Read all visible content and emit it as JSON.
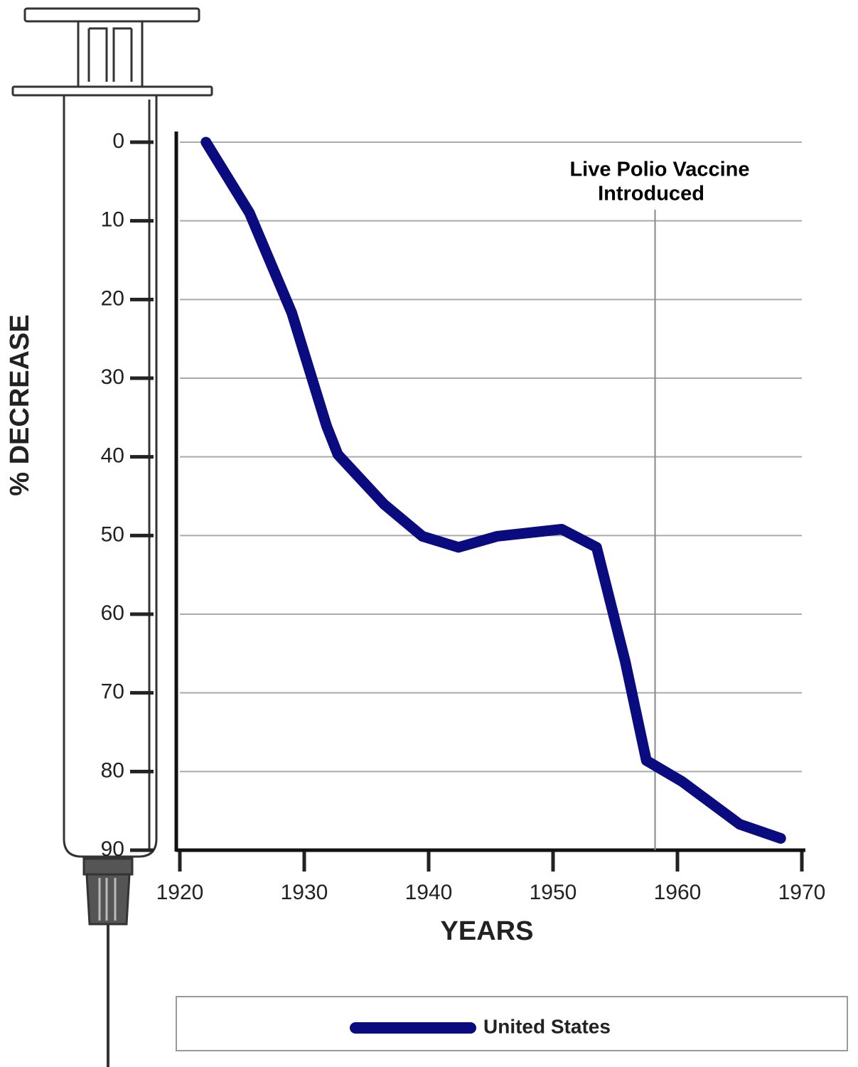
{
  "chart_data": {
    "type": "line",
    "y_label": "% DECREASE",
    "x_label": "YEARS",
    "annotation": {
      "text": [
        "Live Polio Vaccine",
        "Introduced"
      ],
      "x": 1958.2
    },
    "x": [
      1922.1,
      1925.6,
      1929,
      1931.8,
      1932.7,
      1936.4,
      1939.5,
      1942.4,
      1945.5,
      1950.7,
      1953.5,
      1955.8,
      1957.5,
      1960.4,
      1965,
      1968.3
    ],
    "series": [
      {
        "name": "United States",
        "color": "#0b0b80",
        "values": [
          0,
          9,
          21.7,
          36.1,
          39.7,
          46,
          50.1,
          51.5,
          50.1,
          49.2,
          51.5,
          66,
          78.6,
          81.3,
          86.7,
          88.5
        ]
      }
    ],
    "xlim": [
      1920,
      1970
    ],
    "xticks": [
      1920,
      1930,
      1940,
      1950,
      1960,
      1970
    ],
    "ylim": [
      0,
      90
    ],
    "yticks": [
      0,
      10,
      20,
      30,
      40,
      50,
      60,
      70,
      80,
      90
    ],
    "y_inverted": true,
    "grid": true
  }
}
